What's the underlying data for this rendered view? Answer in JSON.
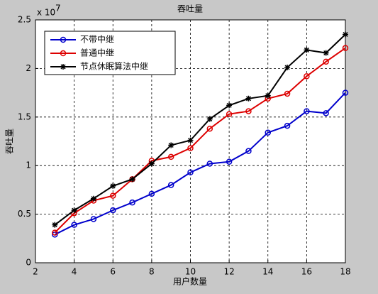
{
  "chart_data": {
    "type": "line",
    "title": "吞吐量",
    "xlabel": "用户数量",
    "ylabel": "吞吐量",
    "y_multiplier": {
      "base": "x 10",
      "exponent": "7"
    },
    "x": [
      3,
      4,
      5,
      6,
      7,
      8,
      9,
      10,
      11,
      12,
      13,
      14,
      15,
      16,
      17,
      18
    ],
    "series": [
      {
        "name": "不带中继",
        "color": "#0000cc",
        "marker": "circle",
        "values": [
          0.29,
          0.39,
          0.45,
          0.54,
          0.62,
          0.71,
          0.8,
          0.93,
          1.02,
          1.04,
          1.15,
          1.34,
          1.41,
          1.56,
          1.54,
          1.75
        ]
      },
      {
        "name": "普通中继",
        "color": "#dd0000",
        "marker": "circle",
        "values": [
          0.31,
          0.51,
          0.64,
          0.69,
          0.86,
          1.05,
          1.09,
          1.18,
          1.38,
          1.53,
          1.56,
          1.69,
          1.74,
          1.92,
          2.07,
          2.21
        ]
      },
      {
        "name": "节点休眠算法中继",
        "color": "#000000",
        "marker": "star",
        "values": [
          0.39,
          0.54,
          0.66,
          0.79,
          0.86,
          1.02,
          1.21,
          1.26,
          1.48,
          1.62,
          1.69,
          1.72,
          2.01,
          2.19,
          2.16,
          2.35
        ]
      }
    ],
    "xlim": [
      2,
      18
    ],
    "xticks": [
      2,
      4,
      6,
      8,
      10,
      12,
      14,
      16,
      18
    ],
    "ylim": [
      0,
      2.5
    ],
    "yticks": [
      0,
      0.5,
      1,
      1.5,
      2,
      2.5
    ],
    "grid": true,
    "legend": "upper left"
  }
}
